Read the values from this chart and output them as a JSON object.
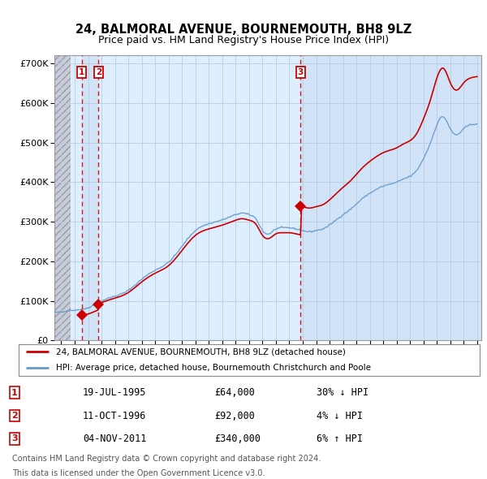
{
  "title1": "24, BALMORAL AVENUE, BOURNEMOUTH, BH8 9LZ",
  "title2": "Price paid vs. HM Land Registry's House Price Index (HPI)",
  "sales": [
    {
      "index": 1,
      "date_label": "19-JUL-1995",
      "year": 1995.54,
      "price": 64000,
      "pct": "30%",
      "dir": "↓"
    },
    {
      "index": 2,
      "date_label": "11-OCT-1996",
      "year": 1996.78,
      "price": 92000,
      "pct": "4%",
      "dir": "↓"
    },
    {
      "index": 3,
      "date_label": "04-NOV-2011",
      "year": 2011.84,
      "price": 340000,
      "pct": "6%",
      "dir": "↑"
    }
  ],
  "legend_line1": "24, BALMORAL AVENUE, BOURNEMOUTH, BH8 9LZ (detached house)",
  "legend_line2": "HPI: Average price, detached house, Bournemouth Christchurch and Poole",
  "footnote1": "Contains HM Land Registry data © Crown copyright and database right 2024.",
  "footnote2": "This data is licensed under the Open Government Licence v3.0.",
  "sale_color": "#cc0000",
  "hpi_color": "#aac8e8",
  "hpi_line_color": "#6699cc",
  "chart_bg": "#ddeeff",
  "hatch_bg": "#ccccdd",
  "grid_color": "#bbccdd",
  "sale_band_color": "#cce0f5",
  "ylim": [
    0,
    720000
  ],
  "yticks": [
    0,
    100000,
    200000,
    300000,
    400000,
    500000,
    600000,
    700000
  ],
  "xlim_start": 1993.5,
  "xlim_end": 2025.3
}
